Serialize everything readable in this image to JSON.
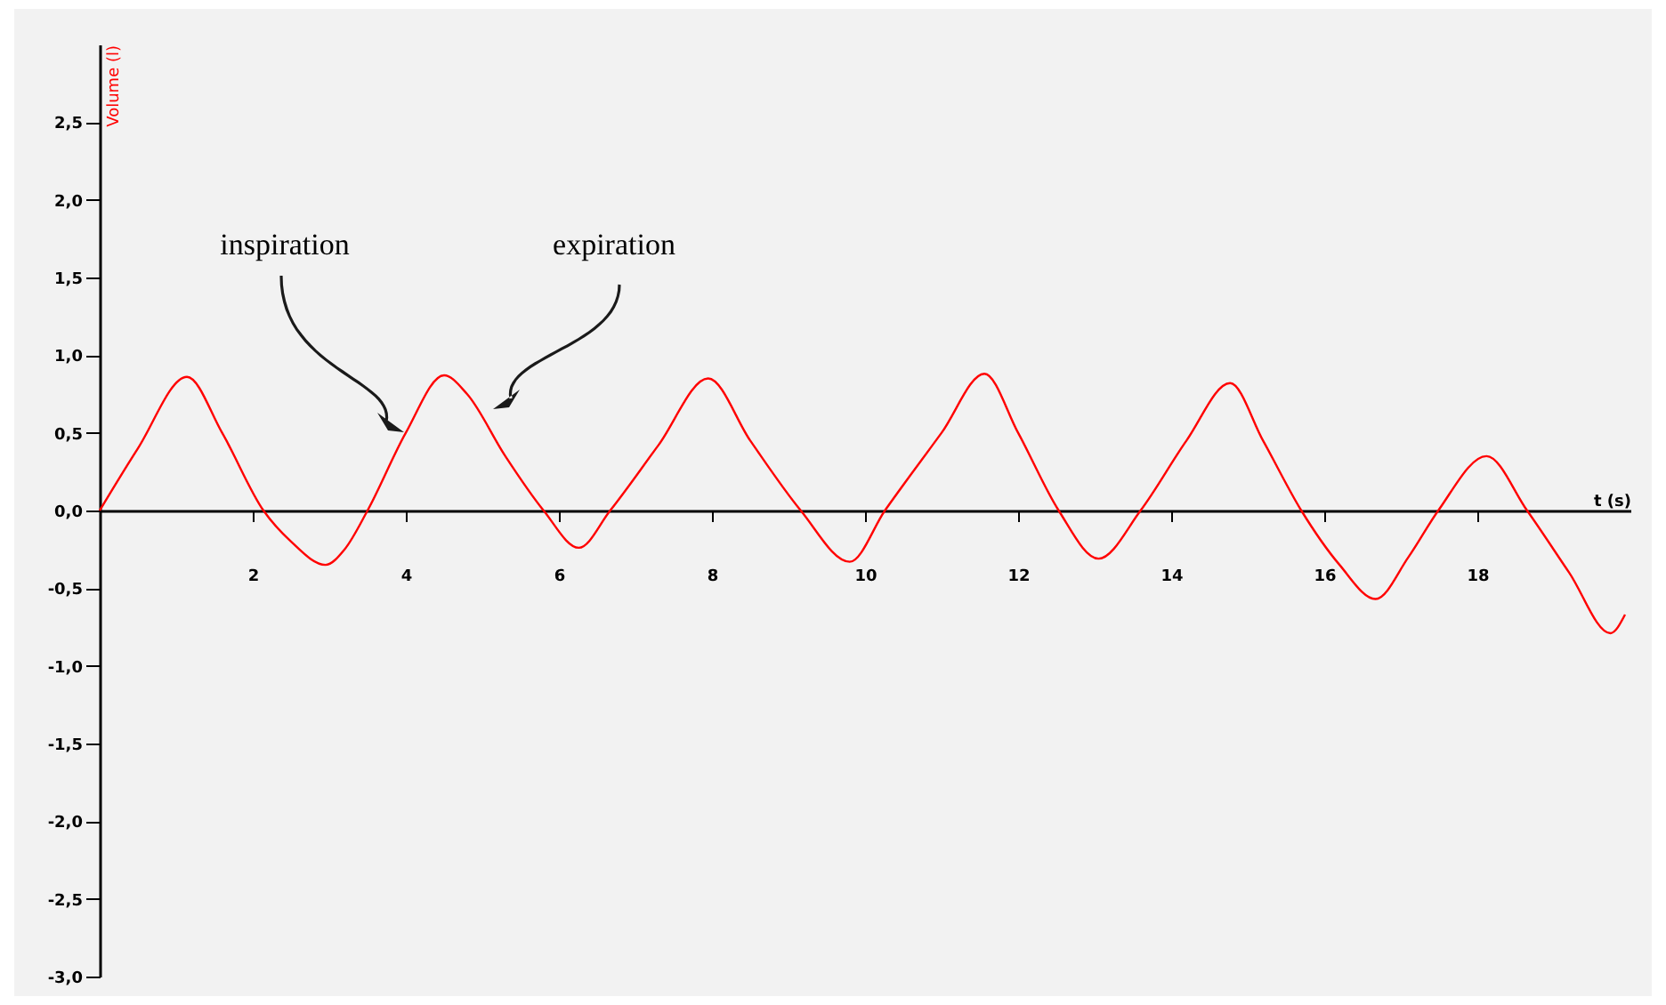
{
  "chart_data": {
    "type": "line",
    "xlabel": "t (s)",
    "ylabel": "Volume (l)",
    "x": [
      0,
      0.5,
      1.14,
      1.6,
      2.14,
      2.5,
      2.95,
      3.2,
      3.5,
      4.0,
      4.5,
      4.8,
      5.3,
      5.8,
      6.26,
      6.67,
      7.3,
      7.95,
      8.5,
      9.16,
      9.8,
      10.26,
      11.0,
      11.56,
      12.0,
      12.53,
      13.05,
      13.6,
      14.2,
      14.77,
      15.2,
      15.7,
      16.2,
      16.67,
      17.1,
      17.49,
      18.12,
      18.65,
      19.2,
      19.74,
      19.93
    ],
    "series": [
      {
        "color": "#ff0000",
        "values": [
          0,
          0.4,
          0.86,
          0.5,
          0.0,
          -0.2,
          -0.35,
          -0.25,
          0.0,
          0.5,
          0.87,
          0.75,
          0.35,
          0.0,
          -0.24,
          0.0,
          0.42,
          0.85,
          0.45,
          0.0,
          -0.33,
          0.0,
          0.5,
          0.88,
          0.5,
          0.0,
          -0.31,
          0.0,
          0.45,
          0.82,
          0.45,
          0.0,
          -0.35,
          -0.57,
          -0.3,
          0.0,
          0.35,
          0.0,
          -0.4,
          -0.79,
          -0.67
        ]
      }
    ],
    "xlim": [
      0,
      20
    ],
    "ylim": [
      -3,
      3
    ],
    "xticks": [
      2,
      4,
      6,
      8,
      10,
      12,
      14,
      16,
      18
    ],
    "yticks": [
      {
        "value": -3,
        "label": "-3,0"
      },
      {
        "value": -2.5,
        "label": "-2,5"
      },
      {
        "value": -2,
        "label": "-2,0"
      },
      {
        "value": -1.5,
        "label": "-1,5"
      },
      {
        "value": -1,
        "label": "-1,0"
      },
      {
        "value": -0.5,
        "label": "-0,5"
      },
      {
        "value": 0,
        "label": "0,0"
      },
      {
        "value": 0.5,
        "label": "0,5"
      },
      {
        "value": 1,
        "label": "1,0"
      },
      {
        "value": 1.5,
        "label": "1,5"
      },
      {
        "value": 2,
        "label": "2,0"
      },
      {
        "value": 2.5,
        "label": "2,5"
      }
    ],
    "annotations": [
      "inspiration",
      "expiration"
    ],
    "legend": false,
    "marker": "none",
    "line_style": "solid"
  }
}
